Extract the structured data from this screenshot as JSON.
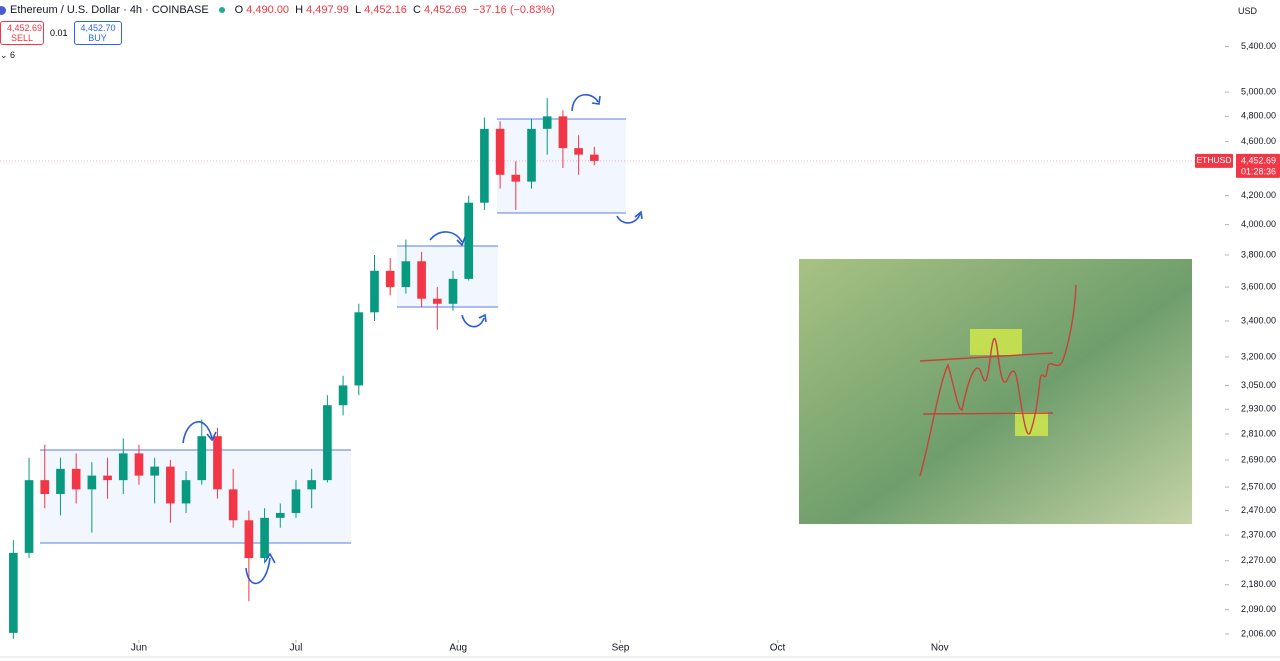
{
  "header": {
    "symbol": "Ethereum / U.S. Dollar · 4h · COINBASE",
    "open": {
      "label": "O",
      "value": "4,490.00"
    },
    "high": {
      "label": "H",
      "value": "4,497.99"
    },
    "low": {
      "label": "L",
      "value": "4,452.16"
    },
    "close": {
      "label": "C",
      "value": "4,452.69"
    },
    "change": "−37.16 (−0.83%)",
    "sell_price": "4,452.69",
    "sell": "SELL",
    "spread": "0.01",
    "buy_price": "4,452.70",
    "buy": "BUY",
    "indicator_count": "6",
    "currency": "USD"
  },
  "chart_data": {
    "type": "candlestick",
    "log_scale": true,
    "up_color": "#089981",
    "down_color": "#f23645",
    "x": [
      -24,
      -21,
      -18,
      -15,
      -12,
      -9,
      -6,
      -3,
      0,
      3,
      6,
      9,
      12,
      15,
      18,
      21,
      24,
      27,
      30,
      33,
      36,
      39,
      42,
      45,
      48,
      51,
      54,
      57,
      60,
      63,
      66,
      69,
      72,
      75,
      78,
      81,
      84,
      87
    ],
    "open": [
      2010,
      2300,
      2600,
      2540,
      2650,
      2560,
      2620,
      2600,
      2720,
      2620,
      2660,
      2500,
      2600,
      2800,
      2560,
      2430,
      2280,
      2440,
      2460,
      2560,
      2600,
      2950,
      3050,
      3450,
      3700,
      3600,
      3760,
      3530,
      3500,
      3650,
      4150,
      4700,
      4350,
      4300,
      4700,
      4800,
      4550,
      4500
    ],
    "high": [
      2350,
      2700,
      2760,
      2700,
      2720,
      2680,
      2700,
      2790,
      2760,
      2700,
      2690,
      2640,
      2880,
      2840,
      2650,
      2470,
      2480,
      2500,
      2600,
      2650,
      3000,
      3100,
      3500,
      3800,
      3780,
      3900,
      3820,
      3600,
      3700,
      4200,
      4790,
      4760,
      4450,
      4780,
      4950,
      4850,
      4650,
      4560
    ],
    "low": [
      1990,
      2280,
      2480,
      2450,
      2500,
      2380,
      2520,
      2540,
      2580,
      2500,
      2420,
      2460,
      2580,
      2520,
      2400,
      2120,
      2260,
      2400,
      2440,
      2480,
      2590,
      2900,
      3000,
      3400,
      3550,
      3560,
      3480,
      3350,
      3460,
      3640,
      4100,
      4250,
      4100,
      4250,
      4500,
      4400,
      4350,
      4420
    ],
    "close": [
      2300,
      2600,
      2540,
      2650,
      2560,
      2620,
      2600,
      2720,
      2620,
      2660,
      2500,
      2600,
      2800,
      2560,
      2430,
      2280,
      2440,
      2460,
      2560,
      2600,
      2950,
      3050,
      3450,
      3700,
      3600,
      3760,
      3530,
      3500,
      3650,
      4150,
      4700,
      4350,
      4300,
      4700,
      4800,
      4550,
      4500,
      4452.69
    ],
    "xlim": [
      -26.55,
      207.5
    ],
    "xticks": [
      {
        "value": 0,
        "label": "Jun"
      },
      {
        "value": 30,
        "label": "Jul"
      },
      {
        "value": 61,
        "label": "Aug"
      },
      {
        "value": 92,
        "label": "Sep"
      },
      {
        "value": 122,
        "label": "Oct"
      },
      {
        "value": 153,
        "label": "Nov"
      }
    ],
    "ylim": [
      1986,
      5840
    ],
    "yticks": [
      {
        "value": 5400,
        "label": "5,400.00"
      },
      {
        "value": 5000,
        "label": "5,000.00"
      },
      {
        "value": 4800,
        "label": "4,800.00"
      },
      {
        "value": 4600,
        "label": "4,600.00"
      },
      {
        "value": 4200,
        "label": "4,200.00"
      },
      {
        "value": 4000,
        "label": "4,000.00"
      },
      {
        "value": 3800,
        "label": "3,800.00"
      },
      {
        "value": 3600,
        "label": "3,600.00"
      },
      {
        "value": 3400,
        "label": "3,400.00"
      },
      {
        "value": 3200,
        "label": "3,200.00"
      },
      {
        "value": 3050,
        "label": "3,050.00"
      },
      {
        "value": 2930,
        "label": "2,930.00"
      },
      {
        "value": 2810,
        "label": "2,810.00"
      },
      {
        "value": 2690,
        "label": "2,690.00"
      },
      {
        "value": 2570,
        "label": "2,570.00"
      },
      {
        "value": 2470,
        "label": "2,470.00"
      },
      {
        "value": 2370,
        "label": "2,370.00"
      },
      {
        "value": 2270,
        "label": "2,270.00"
      },
      {
        "value": 2180,
        "label": "2,180.00"
      },
      {
        "value": 2090,
        "label": "2,090.00"
      },
      {
        "value": 2006,
        "label": "2,006.00"
      }
    ],
    "last_price": {
      "symbol": "ETHUSD",
      "value": 4452.69,
      "label": "4,452.69",
      "countdown": "01:28:36"
    }
  }
}
